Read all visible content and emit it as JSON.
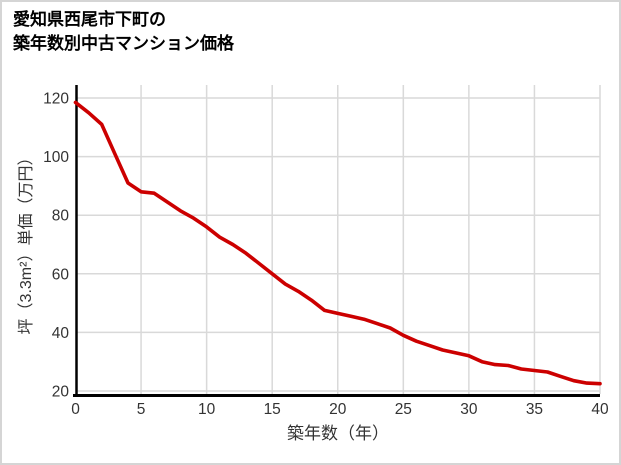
{
  "title": {
    "line1": "愛知県西尾市下町の",
    "line2": "築年数別中古マンション価格"
  },
  "chart_data": {
    "type": "line",
    "title": "愛知県西尾市下町の 築年数別中古マンション価格",
    "xlabel": "築年数（年）",
    "ylabel": "坪（3.3m²）単価（万円）",
    "x": [
      0,
      1,
      2,
      3,
      4,
      5,
      6,
      7,
      8,
      9,
      10,
      11,
      12,
      13,
      14,
      15,
      16,
      17,
      18,
      19,
      20,
      21,
      22,
      23,
      24,
      25,
      26,
      27,
      28,
      29,
      30,
      31,
      32,
      33,
      34,
      35,
      36,
      37,
      38,
      39,
      40
    ],
    "values": [
      118.5,
      115,
      111,
      101,
      91,
      88,
      87.5,
      84.5,
      81.5,
      79,
      76,
      72.5,
      70,
      67,
      63.5,
      60,
      56.5,
      54,
      51,
      47.5,
      46.5,
      45.5,
      44.5,
      43,
      41.5,
      39,
      37,
      35.5,
      34,
      33,
      32,
      30,
      29,
      28.7,
      27.5,
      27,
      26.5,
      25,
      23.5,
      22.7,
      22.5
    ],
    "xlim": [
      0,
      40
    ],
    "ylim": [
      20,
      120
    ],
    "x_ticks": [
      "0",
      "5",
      "10",
      "15",
      "20",
      "25",
      "30",
      "35",
      "40"
    ],
    "x_tick_values": [
      0,
      5,
      10,
      15,
      20,
      25,
      30,
      35,
      40
    ],
    "y_ticks": [
      "20",
      "40",
      "60",
      "80",
      "100",
      "120"
    ],
    "y_tick_values": [
      20,
      40,
      60,
      80,
      100,
      120
    ],
    "grid": true,
    "legend": false
  },
  "colors": {
    "line": "#cc0000",
    "grid": "#d9d9d9",
    "axis": "#000000",
    "tick_text": "#333333",
    "title_text": "#000000",
    "frame_border": "#d5d5d5",
    "background": "#ffffff"
  }
}
